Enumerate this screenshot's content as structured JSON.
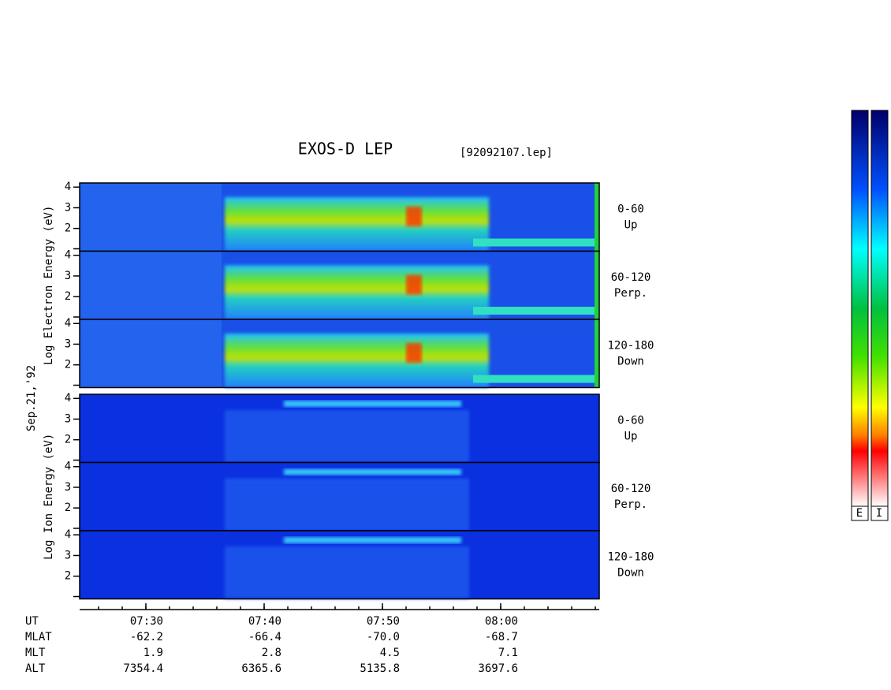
{
  "chart_data": {
    "type": "spectrogram",
    "title": "EXOS-D LEP",
    "subtitle": "[92092107.lep]",
    "date_label": "Sep.21,'92",
    "ylim": [
      0.9,
      4.2
    ],
    "yticks": [
      2,
      3,
      4
    ],
    "groups": [
      {
        "ylabel": "Log Electron Energy (eV)",
        "panels": [
          [
            "0-60",
            "Up"
          ],
          [
            "60-120",
            "Perp."
          ],
          [
            "120-180",
            "Down"
          ]
        ]
      },
      {
        "ylabel": "Log Ion Energy (eV)",
        "panels": [
          [
            "0-60",
            "Up"
          ],
          [
            "60-120",
            "Perp."
          ],
          [
            "120-180",
            "Down"
          ]
        ]
      }
    ],
    "row_labels": [
      "UT",
      "MLAT",
      "MLT",
      "ALT"
    ],
    "columns": [
      [
        "07:30",
        "-62.2",
        "1.9",
        "7354.4"
      ],
      [
        "07:40",
        "-66.4",
        "2.8",
        "6365.6"
      ],
      [
        "07:50",
        "-70.0",
        "4.5",
        "5135.8"
      ],
      [
        "08:00",
        "-68.7",
        "7.1",
        "3697.6"
      ]
    ],
    "colorbar_labels": [
      "E",
      "I"
    ]
  }
}
